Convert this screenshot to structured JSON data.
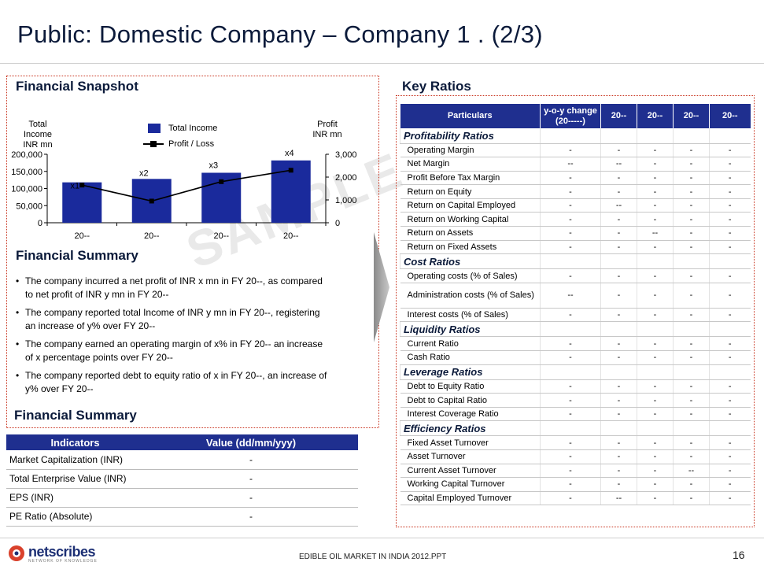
{
  "slide": {
    "title": "Public: Domestic Company –  Company 1 . (2/3)",
    "footer": "EDIBLE OIL MARKET IN INDIA 2012.PPT",
    "page_number": "16",
    "watermark": "SAMPLE",
    "logo_name": "netscribes",
    "logo_tagline": "NETWORK OF KNOWLEDGE"
  },
  "snapshot": {
    "heading": "Financial Snapshot",
    "left_axis_title": "Total Income\nINR mn",
    "right_axis_title": "Profit\nINR mn",
    "legend_bar": "Total Income",
    "legend_line": "Profit / Loss"
  },
  "chart_data": {
    "type": "bar",
    "categories": [
      "20--",
      "20--",
      "20--",
      "20--"
    ],
    "series": [
      {
        "name": "Total Income",
        "type": "bar",
        "axis": "left",
        "values": [
          118000,
          128000,
          146000,
          182000
        ],
        "data_labels": [
          "x1",
          "x2",
          "x3",
          "x4"
        ],
        "color": "#1a2a9c"
      },
      {
        "name": "Profit / Loss",
        "type": "line",
        "axis": "right",
        "values": [
          1650,
          950,
          1800,
          2300
        ],
        "color": "#000000"
      }
    ],
    "y_left": {
      "ticks": [
        "0",
        "50,000",
        "100,000",
        "150,000",
        "200,000"
      ],
      "range": [
        0,
        200000
      ]
    },
    "y_right": {
      "ticks": [
        "0",
        "1,000",
        "2,000",
        "3,000"
      ],
      "range": [
        0,
        3000
      ]
    },
    "legend_position": "top-center"
  },
  "summary": {
    "heading": "Financial Summary",
    "bullets": [
      "The company incurred a net profit of INR  x mn in FY 20--, as compared to net profit of INR  y  mn in FY 20--",
      "The company reported total Income of  INR y mn in FY 20--, registering an increase of y% over FY 20--",
      "The company earned an operating margin of x% in FY 20-- an increase of x percentage points over FY 20--",
      "The company reported debt to equity ratio of x in FY 20--, an increase of y% over FY 20--"
    ]
  },
  "indicators": {
    "heading": "Financial Summary",
    "col_indicator": "Indicators",
    "col_value": "Value (dd/mm/yyy)",
    "rows": [
      {
        "label": "Market Capitalization (INR)",
        "value": "-"
      },
      {
        "label": "Total Enterprise Value (INR)",
        "value": "-"
      },
      {
        "label": "EPS (INR)",
        "value": "-"
      },
      {
        "label": "PE Ratio (Absolute)",
        "value": "-"
      }
    ]
  },
  "ratios": {
    "heading": "Key Ratios",
    "headers": [
      "Particulars",
      "y-o-y change (20-----)",
      "20--",
      "20--",
      "20--",
      "20--"
    ],
    "groups": [
      {
        "name": "Profitability Ratios",
        "rows": [
          {
            "label": "Operating Margin",
            "values": [
              "-",
              "-",
              "-",
              "-",
              "-"
            ]
          },
          {
            "label": "Net Margin",
            "values": [
              "--",
              "--",
              "-",
              "-",
              "-"
            ]
          },
          {
            "label": "Profit Before Tax Margin",
            "values": [
              "-",
              "-",
              "-",
              "-",
              "-"
            ]
          },
          {
            "label": "Return on Equity",
            "values": [
              "-",
              "-",
              "-",
              "-",
              "-"
            ]
          },
          {
            "label": "Return on Capital Employed",
            "values": [
              "-",
              "--",
              "-",
              "-",
              "-"
            ]
          },
          {
            "label": "Return on Working Capital",
            "values": [
              "-",
              "-",
              "-",
              "-",
              "-"
            ]
          },
          {
            "label": "Return on Assets",
            "values": [
              "-",
              "-",
              "--",
              "-",
              "-"
            ]
          },
          {
            "label": "Return on Fixed Assets",
            "values": [
              "-",
              "-",
              "-",
              "-",
              "-"
            ]
          }
        ]
      },
      {
        "name": "Cost Ratios",
        "rows": [
          {
            "label": "Operating costs (% of Sales)",
            "values": [
              "-",
              "-",
              "-",
              "-",
              "-"
            ]
          },
          {
            "label": "Administration costs (% of Sales)",
            "values": [
              "--",
              "-",
              "-",
              "-",
              "-"
            ]
          },
          {
            "label": "Interest costs (% of Sales)",
            "values": [
              "-",
              "-",
              "-",
              "-",
              "-"
            ]
          }
        ]
      },
      {
        "name": "Liquidity Ratios",
        "rows": [
          {
            "label": "Current Ratio",
            "values": [
              "-",
              "-",
              "-",
              "-",
              "-"
            ]
          },
          {
            "label": "Cash Ratio",
            "values": [
              "-",
              "-",
              "-",
              "-",
              "-"
            ]
          }
        ]
      },
      {
        "name": "Leverage Ratios",
        "rows": [
          {
            "label": "Debt to Equity Ratio",
            "values": [
              "-",
              "-",
              "-",
              "-",
              "-"
            ]
          },
          {
            "label": "Debt to Capital Ratio",
            "values": [
              "-",
              "-",
              "-",
              "-",
              "-"
            ]
          },
          {
            "label": "Interest Coverage Ratio",
            "values": [
              "-",
              "-",
              "-",
              "-",
              "-"
            ]
          }
        ]
      },
      {
        "name": "Efficiency Ratios",
        "rows": [
          {
            "label": "Fixed Asset Turnover",
            "values": [
              "-",
              "-",
              "-",
              "-",
              "-"
            ]
          },
          {
            "label": "Asset Turnover",
            "values": [
              "-",
              "-",
              "-",
              "-",
              "-"
            ]
          },
          {
            "label": "Current Asset Turnover",
            "values": [
              "-",
              "-",
              "-",
              "--",
              "-"
            ]
          },
          {
            "label": "Working Capital Turnover",
            "values": [
              "-",
              "-",
              "-",
              "-",
              "-"
            ]
          },
          {
            "label": "Capital Employed Turnover",
            "values": [
              "-",
              "--",
              "-",
              "-",
              "-"
            ]
          }
        ]
      }
    ]
  },
  "colors": {
    "accent": "#1f2f8f",
    "bar": "#1a2a9c",
    "title": "#0b1a3a",
    "box_border": "#c9341f"
  }
}
